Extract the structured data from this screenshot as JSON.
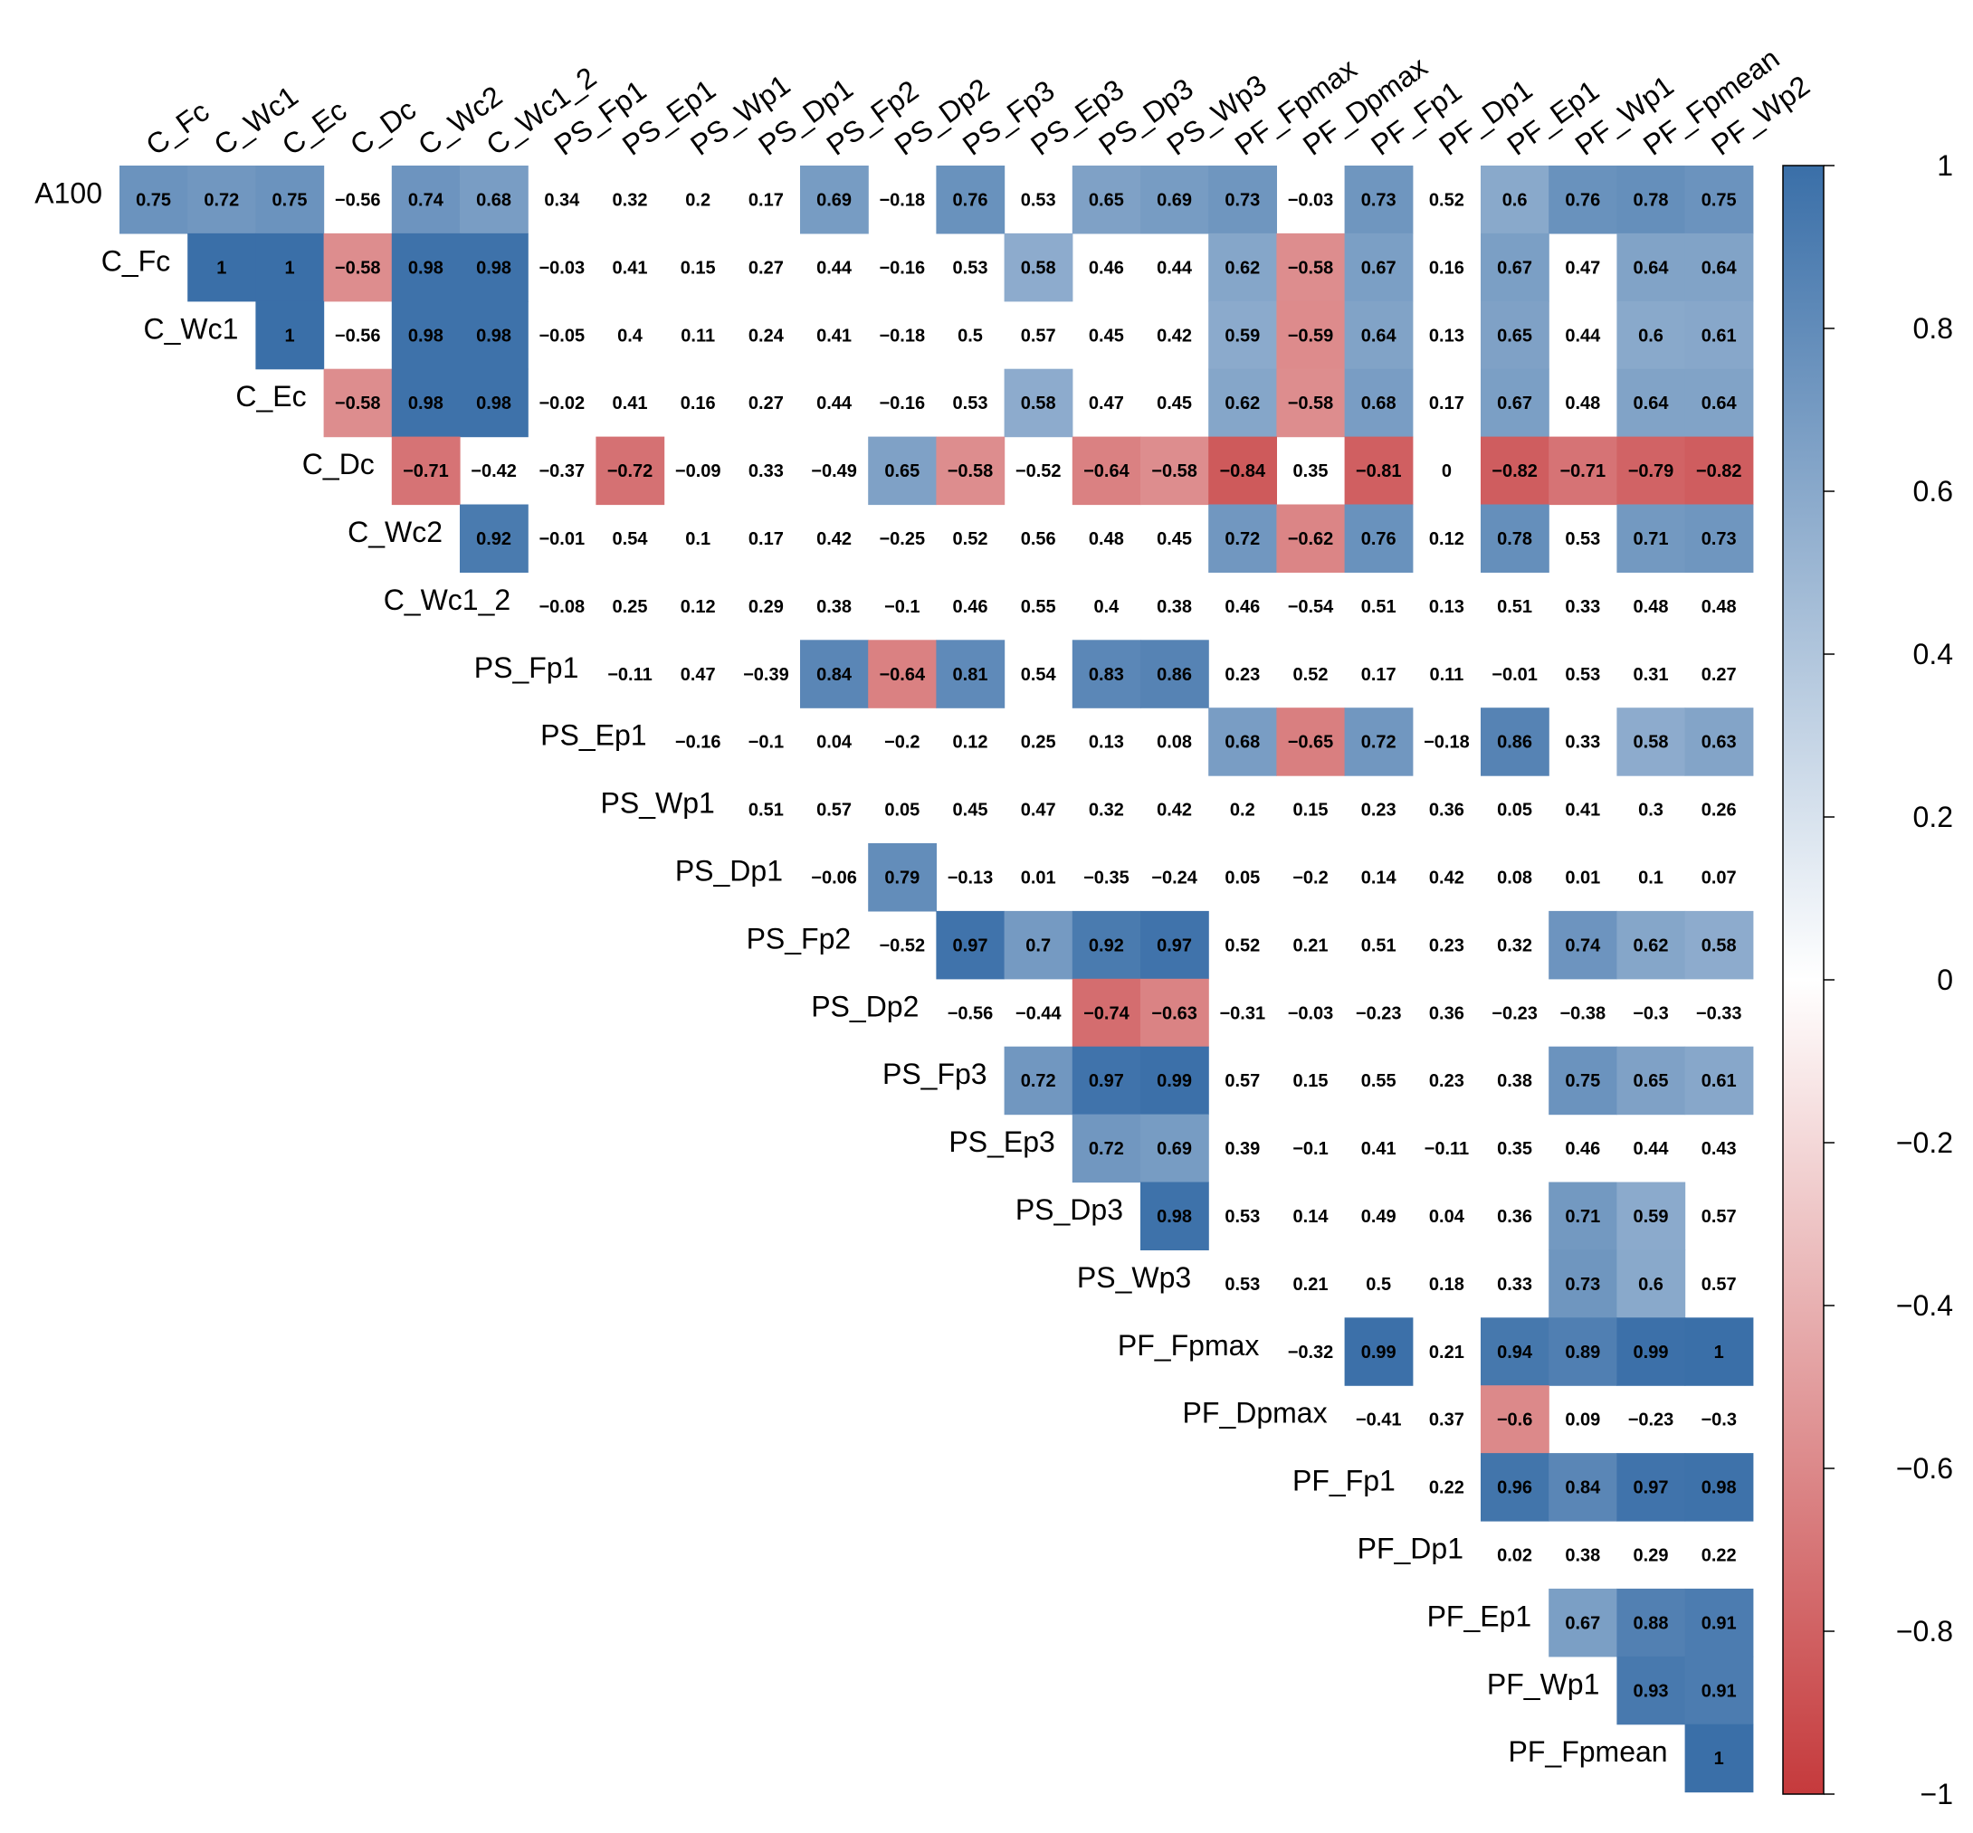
{
  "chart_data": {
    "type": "heatmap",
    "subtype": "correlation-matrix-upper-triangle",
    "title": "",
    "row_labels": [
      "A100",
      "C_Fc",
      "C_Wc1",
      "C_Ec",
      "C_Dc",
      "C_Wc2",
      "C_Wc1_2",
      "PS_Fp1",
      "PS_Ep1",
      "PS_Wp1",
      "PS_Dp1",
      "PS_Fp2",
      "PS_Dp2",
      "PS_Fp3",
      "PS_Ep3",
      "PS_Dp3",
      "PS_Wp3",
      "PF_Fpmax",
      "PF_Dpmax",
      "PF_Fp1",
      "PF_Dp1",
      "PF_Ep1",
      "PF_Wp1",
      "PF_Fpmean"
    ],
    "col_labels": [
      "C_Fc",
      "C_Wc1",
      "C_Ec",
      "C_Dc",
      "C_Wc2",
      "C_Wc1_2",
      "PS_Fp1",
      "PS_Ep1",
      "PS_Wp1",
      "PS_Dp1",
      "PS_Fp2",
      "PS_Dp2",
      "PS_Fp3",
      "PS_Ep3",
      "PS_Dp3",
      "PS_Wp3",
      "PF_Fpmax",
      "PF_Dpmax",
      "PF_Fp1",
      "PF_Dp1",
      "PF_Ep1",
      "PF_Wp1",
      "PF_Fpmean",
      "PF_Wp2"
    ],
    "rows": [
      [
        "0.75",
        "0.72",
        "0.75",
        "−0.56",
        "0.74",
        "0.68",
        "0.34",
        "0.32",
        "0.2",
        "0.17",
        "0.69",
        "−0.18",
        "0.76",
        "0.53",
        "0.65",
        "0.69",
        "0.73",
        "−0.03",
        "0.73",
        "0.52",
        "0.6",
        "0.76",
        "0.78",
        "0.75"
      ],
      [
        "1",
        "1",
        "−0.58",
        "0.98",
        "0.98",
        "−0.03",
        "0.41",
        "0.15",
        "0.27",
        "0.44",
        "−0.16",
        "0.53",
        "0.58",
        "0.46",
        "0.44",
        "0.62",
        "−0.58",
        "0.67",
        "0.16",
        "0.67",
        "0.47",
        "0.64",
        "0.64"
      ],
      [
        "1",
        "−0.56",
        "0.98",
        "0.98",
        "−0.05",
        "0.4",
        "0.11",
        "0.24",
        "0.41",
        "−0.18",
        "0.5",
        "0.57",
        "0.45",
        "0.42",
        "0.59",
        "−0.59",
        "0.64",
        "0.13",
        "0.65",
        "0.44",
        "0.6",
        "0.61"
      ],
      [
        "−0.58",
        "0.98",
        "0.98",
        "−0.02",
        "0.41",
        "0.16",
        "0.27",
        "0.44",
        "−0.16",
        "0.53",
        "0.58",
        "0.47",
        "0.45",
        "0.62",
        "−0.58",
        "0.68",
        "0.17",
        "0.67",
        "0.48",
        "0.64",
        "0.64"
      ],
      [
        "−0.71",
        "−0.42",
        "−0.37",
        "−0.72",
        "−0.09",
        "0.33",
        "−0.49",
        "0.65",
        "−0.58",
        "−0.52",
        "−0.64",
        "−0.58",
        "−0.84",
        "0.35",
        "−0.81",
        "0",
        "−0.82",
        "−0.71",
        "−0.79",
        "−0.82"
      ],
      [
        "0.92",
        "−0.01",
        "0.54",
        "0.1",
        "0.17",
        "0.42",
        "−0.25",
        "0.52",
        "0.56",
        "0.48",
        "0.45",
        "0.72",
        "−0.62",
        "0.76",
        "0.12",
        "0.78",
        "0.53",
        "0.71",
        "0.73"
      ],
      [
        "−0.08",
        "0.25",
        "0.12",
        "0.29",
        "0.38",
        "−0.1",
        "0.46",
        "0.55",
        "0.4",
        "0.38",
        "0.46",
        "−0.54",
        "0.51",
        "0.13",
        "0.51",
        "0.33",
        "0.48",
        "0.48"
      ],
      [
        "−0.11",
        "0.47",
        "−0.39",
        "0.84",
        "−0.64",
        "0.81",
        "0.54",
        "0.83",
        "0.86",
        "0.23",
        "0.52",
        "0.17",
        "0.11",
        "−0.01",
        "0.53",
        "0.31",
        "0.27"
      ],
      [
        "−0.16",
        "−0.1",
        "0.04",
        "−0.2",
        "0.12",
        "0.25",
        "0.13",
        "0.08",
        "0.68",
        "−0.65",
        "0.72",
        "−0.18",
        "0.86",
        "0.33",
        "0.58",
        "0.63"
      ],
      [
        "0.51",
        "0.57",
        "0.05",
        "0.45",
        "0.47",
        "0.32",
        "0.42",
        "0.2",
        "0.15",
        "0.23",
        "0.36",
        "0.05",
        "0.41",
        "0.3",
        "0.26"
      ],
      [
        "−0.06",
        "0.79",
        "−0.13",
        "0.01",
        "−0.35",
        "−0.24",
        "0.05",
        "−0.2",
        "0.14",
        "0.42",
        "0.08",
        "0.01",
        "0.1",
        "0.07"
      ],
      [
        "−0.52",
        "0.97",
        "0.7",
        "0.92",
        "0.97",
        "0.52",
        "0.21",
        "0.51",
        "0.23",
        "0.32",
        "0.74",
        "0.62",
        "0.58"
      ],
      [
        "−0.56",
        "−0.44",
        "−0.74",
        "−0.63",
        "−0.31",
        "−0.03",
        "−0.23",
        "0.36",
        "−0.23",
        "−0.38",
        "−0.3",
        "−0.33"
      ],
      [
        "0.72",
        "0.97",
        "0.99",
        "0.57",
        "0.15",
        "0.55",
        "0.23",
        "0.38",
        "0.75",
        "0.65",
        "0.61"
      ],
      [
        "0.72",
        "0.69",
        "0.39",
        "−0.1",
        "0.41",
        "−0.11",
        "0.35",
        "0.46",
        "0.44",
        "0.43"
      ],
      [
        "0.98",
        "0.53",
        "0.14",
        "0.49",
        "0.04",
        "0.36",
        "0.71",
        "0.59",
        "0.57"
      ],
      [
        "0.53",
        "0.21",
        "0.5",
        "0.18",
        "0.33",
        "0.73",
        "0.6",
        "0.57"
      ],
      [
        "−0.32",
        "0.99",
        "0.21",
        "0.94",
        "0.89",
        "0.99",
        "1"
      ],
      [
        "−0.41",
        "0.37",
        "−0.6",
        "0.09",
        "−0.23",
        "−0.3"
      ],
      [
        "0.22",
        "0.96",
        "0.84",
        "0.97",
        "0.98"
      ],
      [
        "0.02",
        "0.38",
        "0.29",
        "0.22"
      ],
      [
        "0.67",
        "0.88",
        "0.91"
      ],
      [
        "0.93",
        "0.91"
      ],
      [
        "1"
      ]
    ],
    "significance_threshold": 0.58,
    "color_scale": {
      "min": -1,
      "max": 1,
      "negative_color": "#C53A3C",
      "mid_color": "#FFFFFF",
      "positive_color": "#3A6FA8"
    },
    "legend": {
      "placement": "right",
      "ticks": [
        "1",
        "0.8",
        "0.6",
        "0.4",
        "0.2",
        "0",
        "−0.2",
        "−0.4",
        "−0.6",
        "−0.8",
        "−1"
      ]
    }
  }
}
